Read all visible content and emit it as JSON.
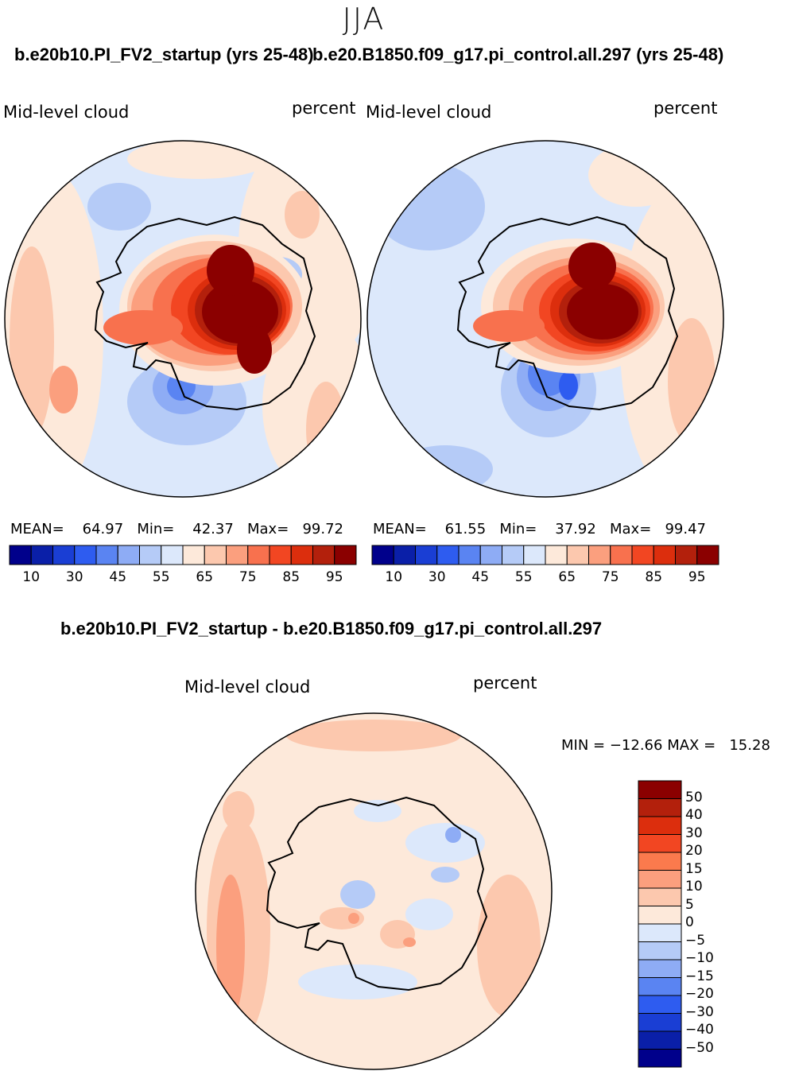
{
  "season": "JJA",
  "panels": [
    {
      "title": "b.e20b10.PI_FV2_startup (yrs 25-48)",
      "variable": "Mid-level cloud",
      "units": "percent",
      "mean_label": "MEAN=",
      "mean": "64.97",
      "min_label": "Min=",
      "min": "42.37",
      "max_label": "Max=",
      "max": "99.72"
    },
    {
      "title": "b.e20.B1850.f09_g17.pi_control.all.297 (yrs 25-48)",
      "variable": "Mid-level cloud",
      "units": "percent",
      "mean_label": "MEAN=",
      "mean": "61.55",
      "min_label": "Min=",
      "min": "37.92",
      "max_label": "Max=",
      "max": "99.47"
    }
  ],
  "colorbar": {
    "colors": [
      "#00008b",
      "#0a1fa8",
      "#1a3ed4",
      "#2e5cf0",
      "#5a84f2",
      "#8eacf5",
      "#b5cbf7",
      "#dce8fb",
      "#fde9da",
      "#fcc8ae",
      "#fb9f7e",
      "#f8714e",
      "#f24622",
      "#dc2e0d",
      "#b3200c",
      "#8b0000"
    ],
    "ticks": [
      "10",
      "30",
      "45",
      "55",
      "65",
      "75",
      "85",
      "95"
    ]
  },
  "difference": {
    "title": "b.e20b10.PI_FV2_startup - b.e20.B1850.f09_g17.pi_control.all.297",
    "variable": "Mid-level cloud",
    "units": "percent",
    "min_label": "MIN =",
    "min": "−12.66",
    "max_label": "MAX =",
    "max": "15.28",
    "colorbar": {
      "colors": [
        "#8b0000",
        "#b3200c",
        "#dc2e0d",
        "#f24622",
        "#fb7a4d",
        "#fb9f7e",
        "#fcc8ae",
        "#fde9da",
        "#dce8fb",
        "#b5cbf7",
        "#8eacf5",
        "#5a84f2",
        "#2e5cf0",
        "#1a3ed4",
        "#0a1fa8",
        "#00008b"
      ],
      "ticks": [
        "50",
        "40",
        "30",
        "20",
        "15",
        "10",
        "5",
        "0",
        "−5",
        "−10",
        "−15",
        "−20",
        "−30",
        "−40",
        "−50"
      ]
    }
  }
}
